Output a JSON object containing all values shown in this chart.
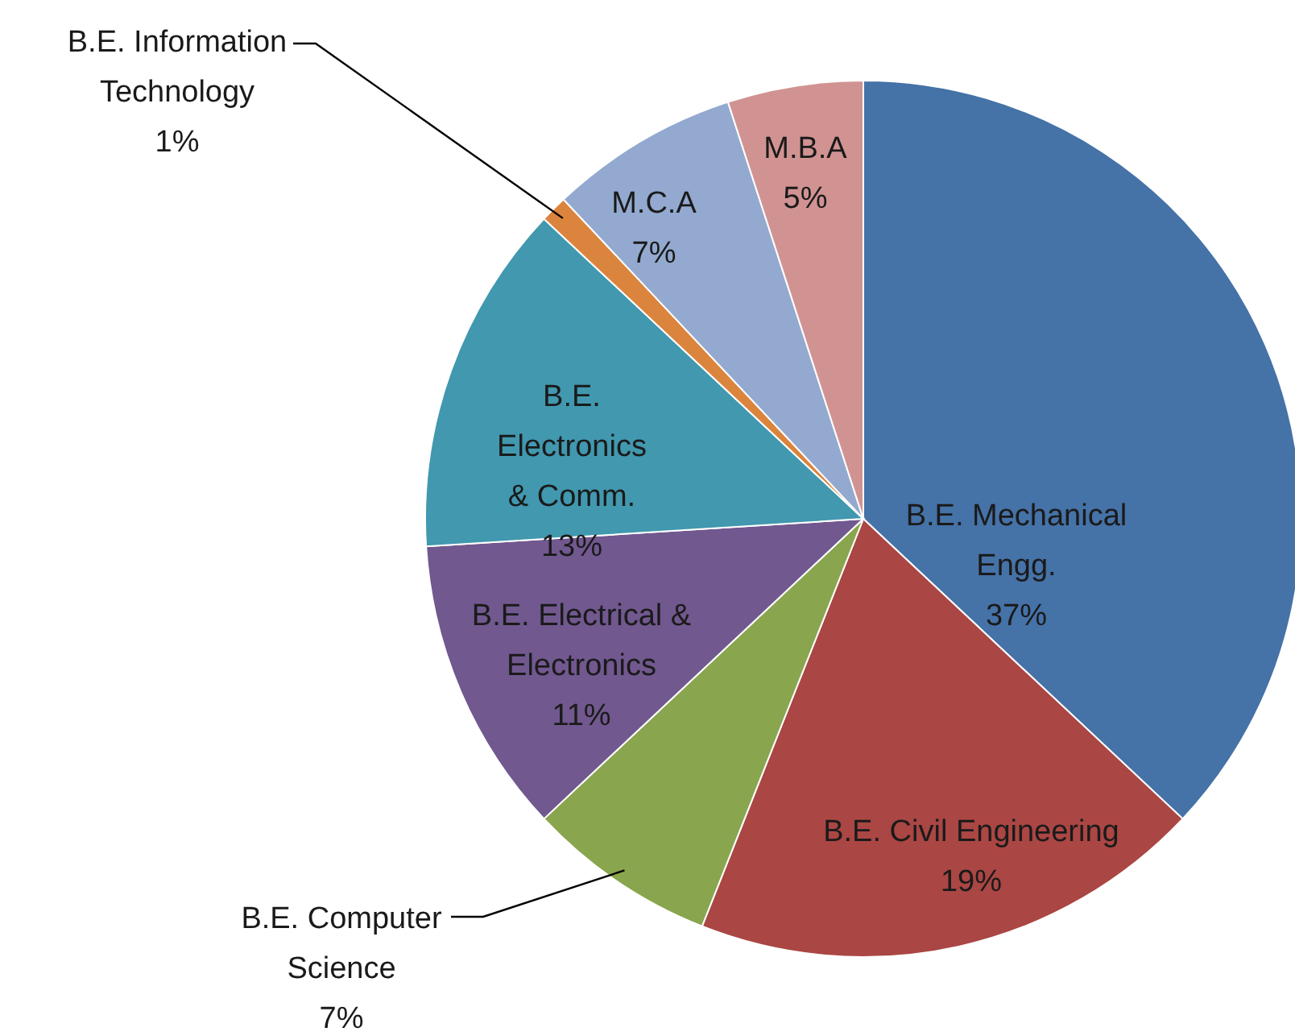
{
  "chart_data": {
    "type": "pie",
    "categories": [
      "B.E. Mechanical Engg.",
      "B.E. Civil Engineering",
      "B.E. Computer Science",
      "B.E. Electrical & Electronics",
      "B.E. Electronics & Comm.",
      "B.E. Information Technology",
      "M.C.A",
      "M.B.A"
    ],
    "values": [
      37,
      19,
      7,
      11,
      13,
      1,
      7,
      5
    ],
    "colors": [
      "#4572a7",
      "#aa4643",
      "#89a54e",
      "#71588f",
      "#4198af",
      "#db843d",
      "#93a9cf",
      "#d19392"
    ],
    "value_labels": [
      "37%",
      "19%",
      "7%",
      "11%",
      "13%",
      "1%",
      "7%",
      "5%"
    ]
  }
}
